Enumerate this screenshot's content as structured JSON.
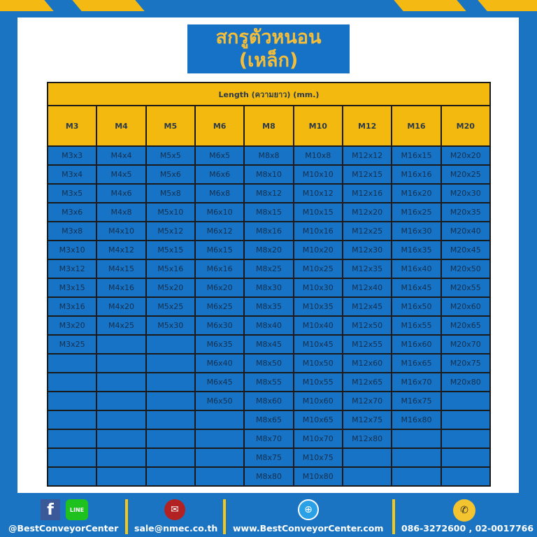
{
  "title": [
    "สกรูตัวหนอน",
    "(เหล็ก)"
  ],
  "table": {
    "length_header": "Length (ความยาว) (mm.)",
    "columns": [
      "M3",
      "M4",
      "M5",
      "M6",
      "M8",
      "M10",
      "M12",
      "M16",
      "M20"
    ],
    "cells": [
      [
        "M3x3",
        "M3x4",
        "M3x5",
        "M3x6",
        "M3x8",
        "M3x10",
        "M3x12",
        "M3x15",
        "M3x16",
        "M3x20",
        "M3x25"
      ],
      [
        "M4x4",
        "M4x5",
        "M4x6",
        "M4x8",
        "M4x10",
        "M4x12",
        "M4x15",
        "M4x16",
        "M4x20",
        "M4x25"
      ],
      [
        "M5x5",
        "M5x6",
        "M5x8",
        "M5x10",
        "M5x12",
        "M5x15",
        "M5x16",
        "M5x20",
        "M5x25",
        "M5x30"
      ],
      [
        "M6x5",
        "M6x6",
        "M6x8",
        "M6x10",
        "M6x12",
        "M6x15",
        "M6x16",
        "M6x20",
        "M6x25",
        "M6x30",
        "M6x35",
        "M6x40",
        "M6x45",
        "M6x50"
      ],
      [
        "M8x8",
        "M8x10",
        "M8x12",
        "M8x15",
        "M8x16",
        "M8x20",
        "M8x25",
        "M8x30",
        "M8x35",
        "M8x40",
        "M8x45",
        "M8x50",
        "M8x55",
        "M8x60",
        "M8x65",
        "M8x70",
        "M8x75",
        "M8x80"
      ],
      [
        "M10x8",
        "M10x10",
        "M10x12",
        "M10x15",
        "M10x16",
        "M10x20",
        "M10x25",
        "M10x30",
        "M10x35",
        "M10x40",
        "M10x45",
        "M10x50",
        "M10x55",
        "M10x60",
        "M10x65",
        "M10x70",
        "M10x75",
        "M10x80"
      ],
      [
        "M12x12",
        "M12x15",
        "M12x16",
        "M12x20",
        "M12x25",
        "M12x30",
        "M12x35",
        "M12x40",
        "M12x45",
        "M12x50",
        "M12x55",
        "M12x60",
        "M12x65",
        "M12x70",
        "M12x75",
        "M12x80"
      ],
      [
        "M16x15",
        "M16x16",
        "M16x20",
        "M16x25",
        "M16x30",
        "M16x35",
        "M16x40",
        "M16x45",
        "M16x50",
        "M16x55",
        "M16x60",
        "M16x65",
        "M16x70",
        "M16x75",
        "M16x80"
      ],
      [
        "M20x20",
        "M20x25",
        "M20x30",
        "M20x35",
        "M20x40",
        "M20x45",
        "M20x50",
        "M20x55",
        "M20x60",
        "M20x65",
        "M20x70",
        "M20x75",
        "M20x80"
      ]
    ]
  },
  "footer": {
    "social": "@BestConveyorCenter",
    "line_label": "LINE",
    "email": "sale@nmec.co.th",
    "website": "www.BestConveyorCenter.com",
    "phone": "086-3272600 , 02-0017766"
  },
  "colors": {
    "blue": "#1b74c2",
    "yellow": "#f4b90e"
  }
}
